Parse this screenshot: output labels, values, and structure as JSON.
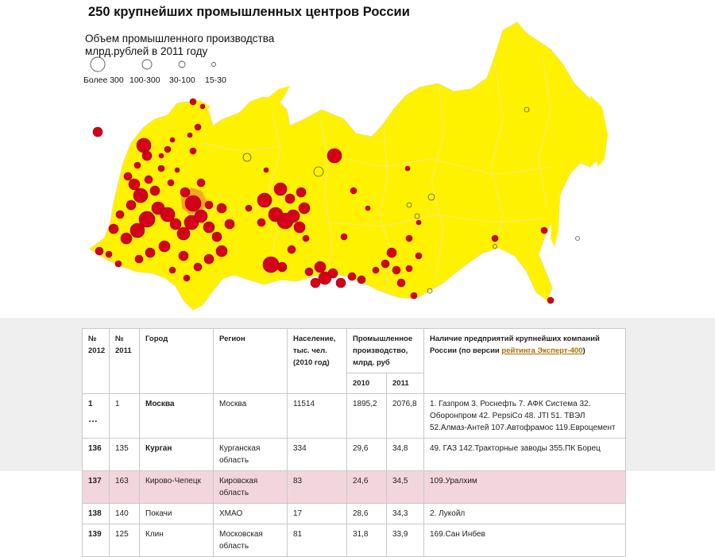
{
  "map": {
    "title": "250 крупнейших промышленных центров России",
    "legend": {
      "heading_line1": "Объем промышленного производства",
      "heading_line2": "млрд.рублей в 2011 году",
      "classes": [
        "Более 300",
        "100-300",
        "30-100",
        "15-30"
      ]
    },
    "colors": {
      "land": "#fff200",
      "borders": "#f6e79a",
      "highlight_region": "#f5a623",
      "center_fill": "#d4001a",
      "center_stroke": "#9a0010"
    }
  },
  "table": {
    "headers": {
      "n2012": "№ 2012",
      "n2011": "№ 2011",
      "city": "Город",
      "region": "Регион",
      "population": "Население, тыс. чел. (2010 год)",
      "production": "Промышленное производство, млрд. руб",
      "year2010": "2010",
      "year2011": "2011",
      "companies_prefix": "Наличие предприятий крупнейших компаний России (по версии ",
      "companies_link": "рейтинга Эксперт-400",
      "companies_suffix": ")"
    },
    "ellipsis": "…",
    "rows": [
      {
        "n2012": "1",
        "n2011": "1",
        "city": "Москва",
        "region": "Москва",
        "population": "11514",
        "p2010": "1895,2",
        "p2011": "2076,8",
        "companies": "1. Газпром 3. Роснефть 7. АФК Система 32. Оборонпром 42. PepsiCo 48. JTI 51. ТВЭЛ 52.Алмаз-Антей 107.Автофрамос 119.Евроцемент"
      },
      {
        "n2012": "136",
        "n2011": "135",
        "city": "Курган",
        "region": "Курганская область",
        "population": "334",
        "p2010": "29,6",
        "p2011": "34,8",
        "companies": "49. ГАЗ 142.Тракторные заводы 355.ПК Борец"
      },
      {
        "n2012": "137",
        "n2011": "163",
        "city": "Кирово-Чепецк",
        "region": "Кировская область",
        "population": "83",
        "p2010": "24,6",
        "p2011": "34,5",
        "companies": "109.Уралхим"
      },
      {
        "n2012": "138",
        "n2011": "140",
        "city": "Покачи",
        "region": "ХМАО",
        "population": "17",
        "p2010": "28,6",
        "p2011": "34,3",
        "companies": "2. Лукойл"
      },
      {
        "n2012": "139",
        "n2011": "125",
        "city": "Клин",
        "region": "Московская область",
        "population": "81",
        "p2010": "31,8",
        "p2011": "33,9",
        "companies": "169.Сан Инбев"
      }
    ]
  }
}
